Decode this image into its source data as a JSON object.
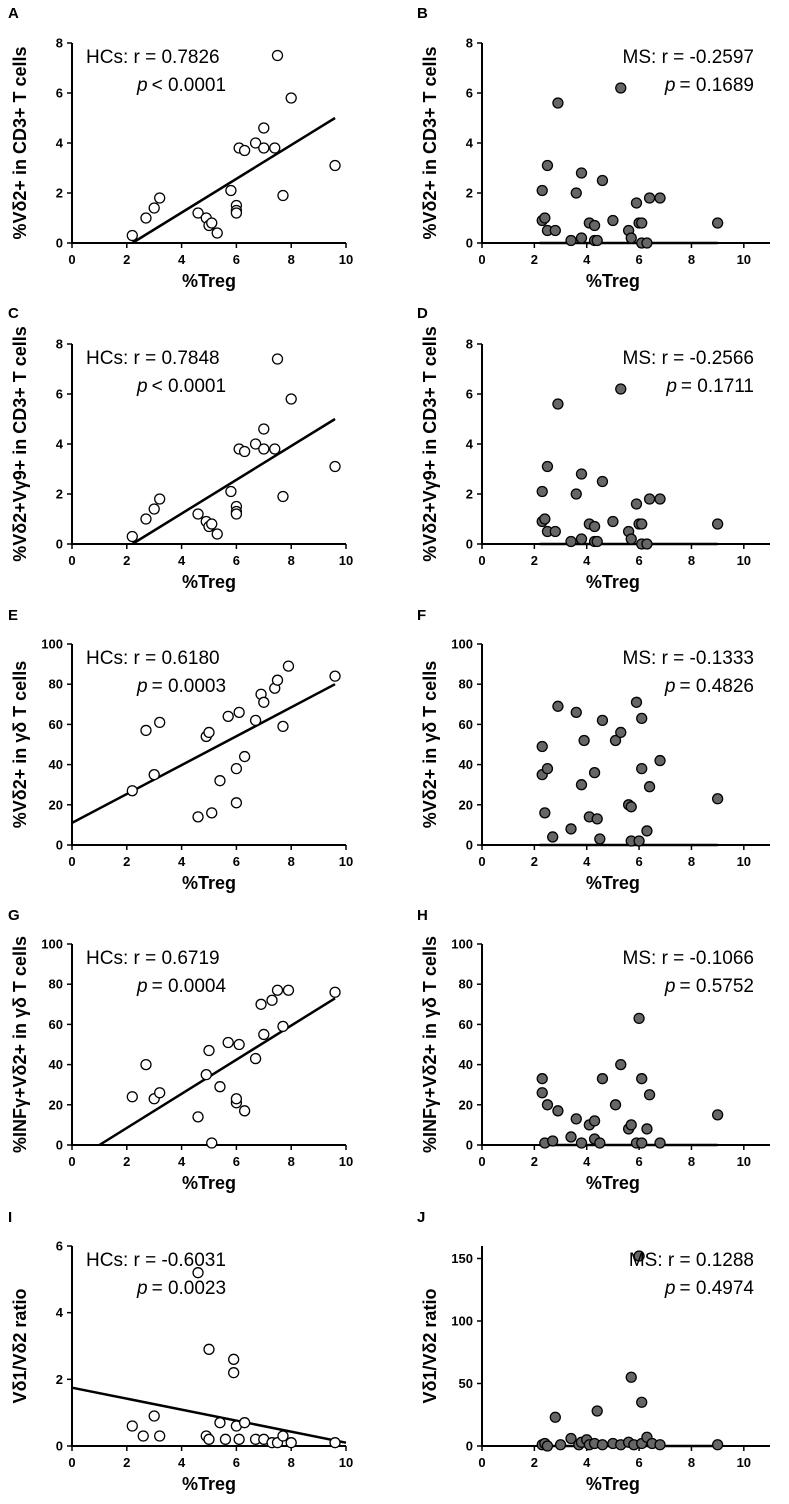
{
  "colors": {
    "hc_fill": "#ffffff",
    "ms_fill": "#666666",
    "stroke": "#000000"
  },
  "chart_data": [
    {
      "panel": "A",
      "type": "scatter",
      "group": "HCs",
      "title": "",
      "xlabel": "%Treg",
      "ylabel": "%Vδ2+ in CD3+ T cells",
      "xlim": [
        0,
        10
      ],
      "ylim": [
        0,
        8
      ],
      "xticks": [
        0,
        2,
        4,
        6,
        8,
        10
      ],
      "yticks": [
        0,
        2,
        4,
        6,
        8
      ],
      "stat_r": "HCs: r = 0.7826",
      "stat_p_sym": "p",
      "stat_p_val": "< 0.0001",
      "stat_align": "left",
      "fill": "#ffffff",
      "points": [
        [
          2.2,
          0.3
        ],
        [
          2.7,
          1.0
        ],
        [
          3.0,
          1.4
        ],
        [
          3.2,
          1.8
        ],
        [
          4.6,
          1.2
        ],
        [
          4.9,
          1.0
        ],
        [
          5.0,
          0.7
        ],
        [
          5.1,
          0.8
        ],
        [
          5.3,
          0.4
        ],
        [
          5.8,
          2.1
        ],
        [
          6.0,
          1.5
        ],
        [
          6.0,
          1.3
        ],
        [
          6.0,
          1.2
        ],
        [
          6.1,
          3.8
        ],
        [
          6.3,
          3.7
        ],
        [
          6.7,
          4.0
        ],
        [
          7.0,
          3.8
        ],
        [
          7.0,
          4.6
        ],
        [
          7.4,
          3.8
        ],
        [
          7.5,
          7.5
        ],
        [
          7.7,
          1.9
        ],
        [
          8.0,
          5.8
        ],
        [
          9.6,
          3.1
        ]
      ],
      "fit": [
        [
          2.2,
          0.0
        ],
        [
          9.6,
          5.0
        ]
      ]
    },
    {
      "panel": "B",
      "type": "scatter",
      "group": "MS",
      "title": "",
      "xlabel": "%Treg",
      "ylabel": "%Vδ2+ in CD3+ T cells",
      "xlim": [
        0,
        11
      ],
      "ylim": [
        0,
        8
      ],
      "xticks": [
        0,
        2,
        4,
        6,
        8,
        10
      ],
      "yticks": [
        0,
        2,
        4,
        6,
        8
      ],
      "stat_r": "MS: r = -0.2597",
      "stat_p_sym": "p",
      "stat_p_val": "= 0.1689",
      "stat_align": "right",
      "fill": "#666666",
      "points": [
        [
          2.3,
          2.1
        ],
        [
          2.3,
          0.9
        ],
        [
          2.4,
          1.0
        ],
        [
          2.5,
          3.1
        ],
        [
          2.5,
          0.5
        ],
        [
          2.8,
          0.5
        ],
        [
          2.9,
          5.6
        ],
        [
          3.4,
          0.1
        ],
        [
          3.6,
          2.0
        ],
        [
          3.8,
          2.8
        ],
        [
          3.8,
          0.2
        ],
        [
          4.1,
          0.8
        ],
        [
          4.3,
          0.7
        ],
        [
          4.3,
          0.1
        ],
        [
          4.4,
          0.1
        ],
        [
          4.6,
          2.5
        ],
        [
          5.0,
          0.9
        ],
        [
          5.3,
          6.2
        ],
        [
          5.6,
          0.5
        ],
        [
          5.7,
          0.2
        ],
        [
          5.9,
          1.6
        ],
        [
          6.0,
          0.8
        ],
        [
          6.1,
          0.8
        ],
        [
          6.1,
          0.0
        ],
        [
          6.3,
          0.0
        ],
        [
          6.4,
          1.8
        ],
        [
          6.8,
          1.8
        ],
        [
          9.0,
          0.8
        ]
      ],
      "fit": [
        [
          2.2,
          0.0
        ],
        [
          9.0,
          0.0
        ]
      ]
    },
    {
      "panel": "C",
      "type": "scatter",
      "group": "HCs",
      "title": "",
      "xlabel": "%Treg",
      "ylabel": "%Vδ2+Vγ9+ in CD3+ T cells",
      "xlim": [
        0,
        10
      ],
      "ylim": [
        0,
        8
      ],
      "xticks": [
        0,
        2,
        4,
        6,
        8,
        10
      ],
      "yticks": [
        0,
        2,
        4,
        6,
        8
      ],
      "stat_r": "HCs: r = 0.7848",
      "stat_p_sym": "p",
      "stat_p_val": "< 0.0001",
      "stat_align": "left",
      "fill": "#ffffff",
      "points": [
        [
          2.2,
          0.3
        ],
        [
          2.7,
          1.0
        ],
        [
          3.0,
          1.4
        ],
        [
          3.2,
          1.8
        ],
        [
          4.6,
          1.2
        ],
        [
          4.9,
          0.9
        ],
        [
          5.0,
          0.7
        ],
        [
          5.1,
          0.8
        ],
        [
          5.3,
          0.4
        ],
        [
          5.8,
          2.1
        ],
        [
          6.0,
          1.5
        ],
        [
          6.0,
          1.3
        ],
        [
          6.0,
          1.2
        ],
        [
          6.1,
          3.8
        ],
        [
          6.3,
          3.7
        ],
        [
          6.7,
          4.0
        ],
        [
          7.0,
          3.8
        ],
        [
          7.0,
          4.6
        ],
        [
          7.4,
          3.8
        ],
        [
          7.5,
          7.4
        ],
        [
          7.7,
          1.9
        ],
        [
          8.0,
          5.8
        ],
        [
          9.6,
          3.1
        ]
      ],
      "fit": [
        [
          2.2,
          0.0
        ],
        [
          9.6,
          5.0
        ]
      ]
    },
    {
      "panel": "D",
      "type": "scatter",
      "group": "MS",
      "title": "",
      "xlabel": "%Treg",
      "ylabel": "%Vδ2+Vγ9+ in CD3+ T cells",
      "xlim": [
        0,
        11
      ],
      "ylim": [
        0,
        8
      ],
      "xticks": [
        0,
        2,
        4,
        6,
        8,
        10
      ],
      "yticks": [
        0,
        2,
        4,
        6,
        8
      ],
      "stat_r": "MS: r = -0.2566",
      "stat_p_sym": "p",
      "stat_p_val": "= 0.1711",
      "stat_align": "right",
      "fill": "#666666",
      "points": [
        [
          2.3,
          2.1
        ],
        [
          2.3,
          0.9
        ],
        [
          2.4,
          1.0
        ],
        [
          2.5,
          3.1
        ],
        [
          2.5,
          0.5
        ],
        [
          2.8,
          0.5
        ],
        [
          2.9,
          5.6
        ],
        [
          3.4,
          0.1
        ],
        [
          3.6,
          2.0
        ],
        [
          3.8,
          2.8
        ],
        [
          3.8,
          0.2
        ],
        [
          4.1,
          0.8
        ],
        [
          4.3,
          0.7
        ],
        [
          4.3,
          0.1
        ],
        [
          4.4,
          0.1
        ],
        [
          4.6,
          2.5
        ],
        [
          5.0,
          0.9
        ],
        [
          5.3,
          6.2
        ],
        [
          5.6,
          0.5
        ],
        [
          5.7,
          0.2
        ],
        [
          5.9,
          1.6
        ],
        [
          6.0,
          0.8
        ],
        [
          6.1,
          0.8
        ],
        [
          6.1,
          0.0
        ],
        [
          6.3,
          0.0
        ],
        [
          6.4,
          1.8
        ],
        [
          6.8,
          1.8
        ],
        [
          9.0,
          0.8
        ]
      ],
      "fit": [
        [
          2.2,
          0.0
        ],
        [
          9.0,
          0.0
        ]
      ]
    },
    {
      "panel": "E",
      "type": "scatter",
      "group": "HCs",
      "title": "",
      "xlabel": "%Treg",
      "ylabel": "%Vδ2+ in γδ T cells",
      "xlim": [
        0,
        10
      ],
      "ylim": [
        0,
        100
      ],
      "xticks": [
        0,
        2,
        4,
        6,
        8,
        10
      ],
      "yticks": [
        0,
        20,
        40,
        60,
        80,
        100
      ],
      "stat_r": "HCs: r = 0.6180",
      "stat_p_sym": "p",
      "stat_p_val": "= 0.0003",
      "stat_align": "left",
      "fill": "#ffffff",
      "points": [
        [
          2.2,
          27
        ],
        [
          2.7,
          57
        ],
        [
          3.0,
          35
        ],
        [
          3.2,
          61
        ],
        [
          4.6,
          14
        ],
        [
          4.9,
          54
        ],
        [
          5.0,
          56
        ],
        [
          5.1,
          16
        ],
        [
          5.4,
          32
        ],
        [
          5.7,
          64
        ],
        [
          6.0,
          21
        ],
        [
          6.0,
          38
        ],
        [
          6.1,
          66
        ],
        [
          6.3,
          44
        ],
        [
          6.7,
          62
        ],
        [
          6.9,
          75
        ],
        [
          7.0,
          71
        ],
        [
          7.4,
          78
        ],
        [
          7.5,
          82
        ],
        [
          7.7,
          59
        ],
        [
          7.9,
          89
        ],
        [
          9.6,
          84
        ]
      ],
      "fit": [
        [
          0,
          11
        ],
        [
          9.6,
          80
        ]
      ]
    },
    {
      "panel": "F",
      "type": "scatter",
      "group": "MS",
      "title": "",
      "xlabel": "%Treg",
      "ylabel": "%Vδ2+ in γδ T cells",
      "xlim": [
        0,
        11
      ],
      "ylim": [
        0,
        100
      ],
      "xticks": [
        0,
        2,
        4,
        6,
        8,
        10
      ],
      "yticks": [
        0,
        20,
        40,
        60,
        80,
        100
      ],
      "stat_r": "MS: r = -0.1333",
      "stat_p_sym": "p",
      "stat_p_val": "= 0.4826",
      "stat_align": "right",
      "fill": "#666666",
      "points": [
        [
          2.3,
          49
        ],
        [
          2.3,
          35
        ],
        [
          2.4,
          16
        ],
        [
          2.5,
          38
        ],
        [
          2.7,
          4
        ],
        [
          2.9,
          69
        ],
        [
          3.4,
          8
        ],
        [
          3.6,
          66
        ],
        [
          3.8,
          30
        ],
        [
          3.9,
          52
        ],
        [
          4.1,
          14
        ],
        [
          4.3,
          36
        ],
        [
          4.4,
          13
        ],
        [
          4.5,
          3
        ],
        [
          4.6,
          62
        ],
        [
          5.1,
          52
        ],
        [
          5.3,
          56
        ],
        [
          5.6,
          20
        ],
        [
          5.7,
          19
        ],
        [
          5.7,
          2
        ],
        [
          5.9,
          71
        ],
        [
          6.0,
          2
        ],
        [
          6.1,
          63
        ],
        [
          6.1,
          38
        ],
        [
          6.3,
          7
        ],
        [
          6.4,
          29
        ],
        [
          6.8,
          42
        ],
        [
          9.0,
          23
        ]
      ],
      "fit": [
        [
          2.2,
          0
        ],
        [
          9.0,
          0
        ]
      ]
    },
    {
      "panel": "G",
      "type": "scatter",
      "group": "HCs",
      "title": "",
      "xlabel": "%Treg",
      "ylabel": "%INFγ+Vδ2+ in γδ T cells",
      "xlim": [
        0,
        10
      ],
      "ylim": [
        0,
        100
      ],
      "xticks": [
        0,
        2,
        4,
        6,
        8,
        10
      ],
      "yticks": [
        0,
        20,
        40,
        60,
        80,
        100
      ],
      "stat_r": "HCs: r = 0.6719",
      "stat_p_sym": "p",
      "stat_p_val": "= 0.0004",
      "stat_align": "left",
      "fill": "#ffffff",
      "points": [
        [
          2.2,
          24
        ],
        [
          2.7,
          40
        ],
        [
          3.0,
          23
        ],
        [
          3.2,
          26
        ],
        [
          4.6,
          14
        ],
        [
          4.9,
          35
        ],
        [
          5.0,
          47
        ],
        [
          5.1,
          1
        ],
        [
          5.4,
          29
        ],
        [
          5.7,
          51
        ],
        [
          6.0,
          21
        ],
        [
          6.0,
          23
        ],
        [
          6.1,
          50
        ],
        [
          6.3,
          17
        ],
        [
          6.7,
          43
        ],
        [
          6.9,
          70
        ],
        [
          7.0,
          55
        ],
        [
          7.3,
          72
        ],
        [
          7.5,
          77
        ],
        [
          7.7,
          59
        ],
        [
          7.9,
          77
        ],
        [
          9.6,
          76
        ]
      ],
      "fit": [
        [
          1.0,
          0
        ],
        [
          9.6,
          73
        ]
      ]
    },
    {
      "panel": "H",
      "type": "scatter",
      "group": "MS",
      "title": "",
      "xlabel": "%Treg",
      "ylabel": "%INFγ+Vδ2+ in γδ T cells",
      "xlim": [
        0,
        11
      ],
      "ylim": [
        0,
        100
      ],
      "xticks": [
        0,
        2,
        4,
        6,
        8,
        10
      ],
      "yticks": [
        0,
        20,
        40,
        60,
        80,
        100
      ],
      "stat_r": "MS: r = -0.1066",
      "stat_p_sym": "p",
      "stat_p_val": "= 0.5752",
      "stat_align": "right",
      "fill": "#666666",
      "points": [
        [
          2.3,
          33
        ],
        [
          2.3,
          26
        ],
        [
          2.4,
          1
        ],
        [
          2.5,
          20
        ],
        [
          2.7,
          2
        ],
        [
          2.9,
          17
        ],
        [
          3.4,
          4
        ],
        [
          3.6,
          13
        ],
        [
          3.8,
          1
        ],
        [
          4.1,
          10
        ],
        [
          4.3,
          12
        ],
        [
          4.3,
          3
        ],
        [
          4.5,
          1
        ],
        [
          4.6,
          33
        ],
        [
          5.1,
          20
        ],
        [
          5.3,
          40
        ],
        [
          5.6,
          8
        ],
        [
          5.7,
          10
        ],
        [
          5.9,
          1
        ],
        [
          6.0,
          63
        ],
        [
          6.1,
          33
        ],
        [
          6.1,
          1
        ],
        [
          6.3,
          8
        ],
        [
          6.4,
          25
        ],
        [
          6.8,
          1
        ],
        [
          9.0,
          15
        ]
      ],
      "fit": [
        [
          2.2,
          0
        ],
        [
          9.0,
          0
        ]
      ]
    },
    {
      "panel": "I",
      "type": "scatter",
      "group": "HCs",
      "title": "",
      "xlabel": "%Treg",
      "ylabel": "Vδ1/Vδ2 ratio",
      "xlim": [
        0,
        10
      ],
      "ylim": [
        0,
        6
      ],
      "xticks": [
        0,
        2,
        4,
        6,
        8,
        10
      ],
      "yticks": [
        0,
        2,
        4,
        6
      ],
      "stat_r": "HCs: r = -0.6031",
      "stat_p_sym": "p",
      "stat_p_val": "= 0.0023",
      "stat_align": "left",
      "fill": "#ffffff",
      "points": [
        [
          2.2,
          0.6
        ],
        [
          2.6,
          0.3
        ],
        [
          3.0,
          0.9
        ],
        [
          3.2,
          0.3
        ],
        [
          4.6,
          5.2
        ],
        [
          4.9,
          0.3
        ],
        [
          5.0,
          0.2
        ],
        [
          5.0,
          2.9
        ],
        [
          5.4,
          0.7
        ],
        [
          5.6,
          0.2
        ],
        [
          5.9,
          2.6
        ],
        [
          5.9,
          2.2
        ],
        [
          6.0,
          0.6
        ],
        [
          6.1,
          0.2
        ],
        [
          6.3,
          0.7
        ],
        [
          6.7,
          0.2
        ],
        [
          7.0,
          0.2
        ],
        [
          7.3,
          0.1
        ],
        [
          7.5,
          0.1
        ],
        [
          7.7,
          0.3
        ],
        [
          8.0,
          0.1
        ],
        [
          9.6,
          0.1
        ]
      ],
      "fit": [
        [
          0,
          1.75
        ],
        [
          10,
          0.1
        ]
      ]
    },
    {
      "panel": "J",
      "type": "scatter",
      "group": "MS",
      "title": "",
      "xlabel": "%Treg",
      "ylabel": "Vδ1/Vδ2 ratio",
      "xlim": [
        0,
        11
      ],
      "ylim": [
        0,
        160
      ],
      "xticks": [
        0,
        2,
        4,
        6,
        8,
        10
      ],
      "yticks": [
        0,
        50,
        100,
        150
      ],
      "stat_r": "MS: r = 0.1288",
      "stat_p_sym": "p",
      "stat_p_val": "= 0.4974",
      "stat_align": "right",
      "fill": "#666666",
      "points": [
        [
          2.3,
          1
        ],
        [
          2.4,
          2
        ],
        [
          2.5,
          0
        ],
        [
          2.8,
          23
        ],
        [
          3.0,
          1
        ],
        [
          3.4,
          6
        ],
        [
          3.7,
          1
        ],
        [
          3.8,
          3
        ],
        [
          4.0,
          5
        ],
        [
          4.1,
          1
        ],
        [
          4.3,
          2
        ],
        [
          4.4,
          28
        ],
        [
          4.6,
          1
        ],
        [
          5.0,
          2
        ],
        [
          5.3,
          1
        ],
        [
          5.6,
          3
        ],
        [
          5.7,
          55
        ],
        [
          5.8,
          1
        ],
        [
          6.0,
          152
        ],
        [
          6.1,
          2
        ],
        [
          6.1,
          35
        ],
        [
          6.3,
          7
        ],
        [
          6.5,
          2
        ],
        [
          6.8,
          1
        ],
        [
          9.0,
          1
        ]
      ],
      "fit": [
        [
          2.2,
          0
        ],
        [
          9.0,
          0
        ]
      ]
    }
  ]
}
